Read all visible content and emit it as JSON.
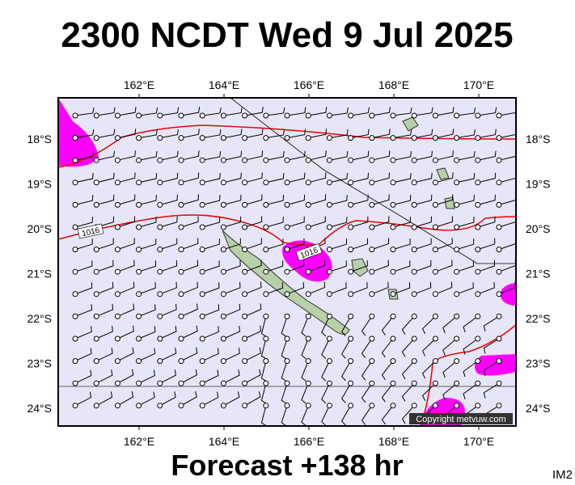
{
  "title": "2300 NCDT Wed 9 Jul 2025",
  "footer": "Forecast +138 hr",
  "corner": "IM2",
  "copyright": "Copyright metvuw.com",
  "lon_labels": [
    "162°E",
    "164°E",
    "166°E",
    "168°E",
    "170°E"
  ],
  "lat_labels": [
    "18°S",
    "19°S",
    "20°S",
    "21°S",
    "22°S",
    "23°S",
    "24°S"
  ],
  "isobar_labels": [
    "1016",
    "1016"
  ]
}
